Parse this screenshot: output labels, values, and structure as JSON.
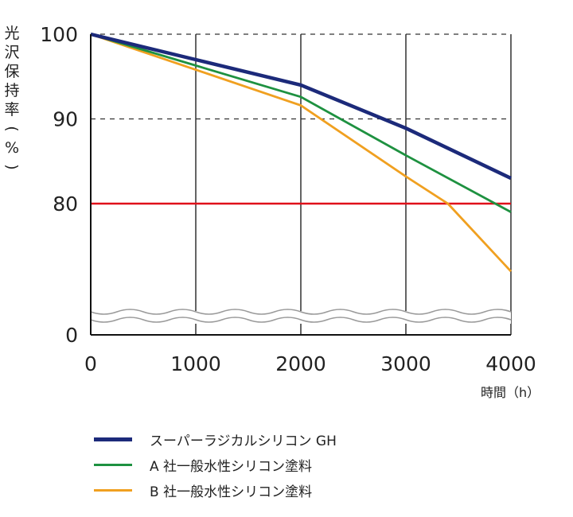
{
  "chart_data": {
    "type": "line",
    "ylabel": "光沢保持率(%)",
    "xlabel": "時間（h）",
    "x_ticks": [
      "0",
      "1000",
      "2000",
      "3000",
      "4000"
    ],
    "y_ticks": [
      "0",
      "80",
      "90",
      "100"
    ],
    "xlim": [
      0,
      4000
    ],
    "y_axis_note": "broken axis between 0 and ~76 (wavy break marks)",
    "reference_line": {
      "y": 80,
      "color": "#e0101a"
    },
    "grid": {
      "vertical": "solid",
      "horizontal_90_100": "dashed"
    },
    "legend_position": "bottom",
    "series": [
      {
        "name": "スーパーラジカルシリコン GH",
        "color": "#1c2a7a",
        "x": [
          0,
          1000,
          2000,
          3000,
          4000
        ],
        "y": [
          100,
          97.0,
          94.0,
          88.9,
          83.0
        ]
      },
      {
        "name": "A 社一般水性シリコン塗料",
        "color": "#1e9140",
        "x": [
          0,
          1000,
          2000,
          3000,
          4000
        ],
        "y": [
          100,
          96.3,
          92.6,
          85.7,
          79.0
        ]
      },
      {
        "name": "B 社一般水性シリコン塗料",
        "color": "#f0a020",
        "x": [
          0,
          1000,
          2000,
          3000,
          3400,
          4000
        ],
        "y": [
          100,
          95.8,
          91.6,
          83.2,
          80.0,
          72.0
        ]
      }
    ]
  }
}
